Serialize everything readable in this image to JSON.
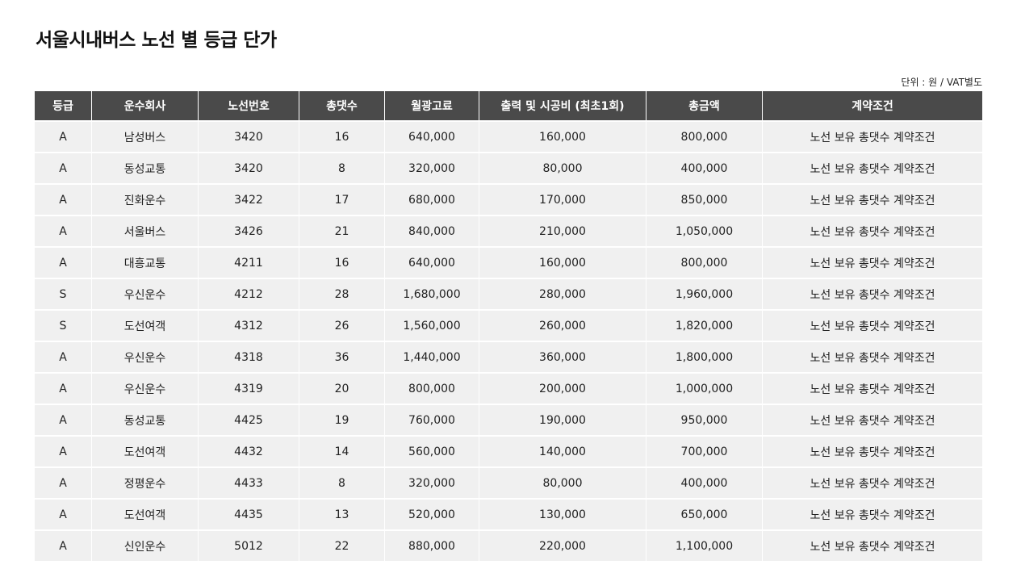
{
  "page": {
    "title": "서울시내버스 노선 별 등급 단가",
    "unit_note": "단위 : 원 / VAT별도"
  },
  "table": {
    "headers": [
      "등급",
      "운수회사",
      "노선번호",
      "총댓수",
      "월광고료",
      "출력 및 시공비 (최초1회)",
      "총금액",
      "계약조건"
    ],
    "rows": [
      [
        "A",
        "남성버스",
        "3420",
        "16",
        "640,000",
        "160,000",
        "800,000",
        "노선 보유 총댓수 계약조건"
      ],
      [
        "A",
        "동성교통",
        "3420",
        "8",
        "320,000",
        "80,000",
        "400,000",
        "노선 보유 총댓수 계약조건"
      ],
      [
        "A",
        "진화운수",
        "3422",
        "17",
        "680,000",
        "170,000",
        "850,000",
        "노선 보유 총댓수 계약조건"
      ],
      [
        "A",
        "서울버스",
        "3426",
        "21",
        "840,000",
        "210,000",
        "1,050,000",
        "노선 보유 총댓수 계약조건"
      ],
      [
        "A",
        "대흥교통",
        "4211",
        "16",
        "640,000",
        "160,000",
        "800,000",
        "노선 보유 총댓수 계약조건"
      ],
      [
        "S",
        "우신운수",
        "4212",
        "28",
        "1,680,000",
        "280,000",
        "1,960,000",
        "노선 보유 총댓수 계약조건"
      ],
      [
        "S",
        "도선여객",
        "4312",
        "26",
        "1,560,000",
        "260,000",
        "1,820,000",
        "노선 보유 총댓수 계약조건"
      ],
      [
        "A",
        "우신운수",
        "4318",
        "36",
        "1,440,000",
        "360,000",
        "1,800,000",
        "노선 보유 총댓수 계약조건"
      ],
      [
        "A",
        "우신운수",
        "4319",
        "20",
        "800,000",
        "200,000",
        "1,000,000",
        "노선 보유 총댓수 계약조건"
      ],
      [
        "A",
        "동성교통",
        "4425",
        "19",
        "760,000",
        "190,000",
        "950,000",
        "노선 보유 총댓수 계약조건"
      ],
      [
        "A",
        "도선여객",
        "4432",
        "14",
        "560,000",
        "140,000",
        "700,000",
        "노선 보유 총댓수 계약조건"
      ],
      [
        "A",
        "정평운수",
        "4433",
        "8",
        "320,000",
        "80,000",
        "400,000",
        "노선 보유 총댓수 계약조건"
      ],
      [
        "A",
        "도선여객",
        "4435",
        "13",
        "520,000",
        "130,000",
        "650,000",
        "노선 보유 총댓수 계약조건"
      ],
      [
        "A",
        "신인운수",
        "5012",
        "22",
        "880,000",
        "220,000",
        "1,100,000",
        "노선 보유 총댓수 계약조건"
      ]
    ]
  },
  "colors": {
    "header_bg": "#4a4a4a",
    "row_bg": "#f0f0f0"
  }
}
